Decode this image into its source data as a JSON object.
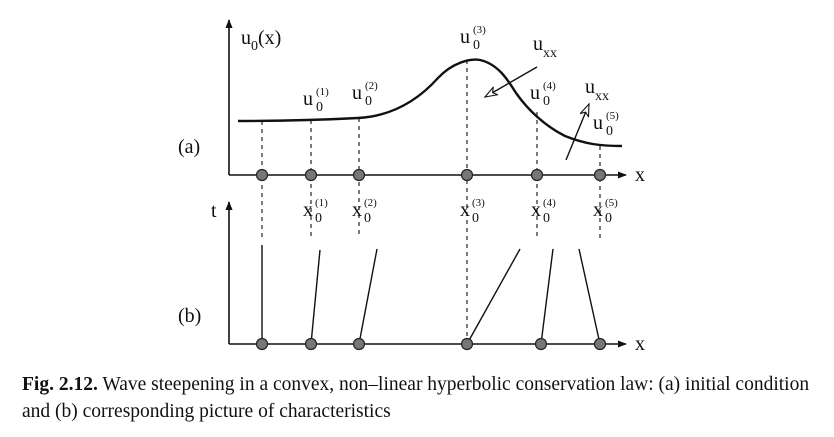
{
  "figure": {
    "panel_a_label": "(a)",
    "panel_b_label": "(b)",
    "top_y_axis_label": "u",
    "top_y_axis_sub": "0",
    "top_y_axis_arg": "(x)",
    "bottom_y_axis_label": "t",
    "top_x_axis_label": "x",
    "bottom_x_axis_label": "x",
    "u_labels": [
      {
        "base": "u",
        "sub": "0",
        "sup": "(1)"
      },
      {
        "base": "u",
        "sub": "0",
        "sup": "(2)"
      },
      {
        "base": "u",
        "sub": "0",
        "sup": "(3)"
      },
      {
        "base": "u",
        "sub": "0",
        "sup": "(4)"
      },
      {
        "base": "u",
        "sub": "0",
        "sup": "(5)"
      }
    ],
    "x_labels": [
      {
        "base": "x",
        "sub": "0",
        "sup": "(1)"
      },
      {
        "base": "x",
        "sub": "0",
        "sup": "(2)"
      },
      {
        "base": "x",
        "sub": "0",
        "sup": "(3)"
      },
      {
        "base": "x",
        "sub": "0",
        "sup": "(4)"
      },
      {
        "base": "x",
        "sub": "0",
        "sup": "(5)"
      }
    ],
    "uxx_labels": [
      {
        "base": "u",
        "sub": "xx"
      },
      {
        "base": "u",
        "sub": "xx"
      }
    ]
  },
  "caption": {
    "label": "Fig. 2.12.",
    "text": " Wave steepening in a convex, non–linear hyperbolic conservation law: (a) initial condition and (b) corresponding picture of characteristics"
  }
}
